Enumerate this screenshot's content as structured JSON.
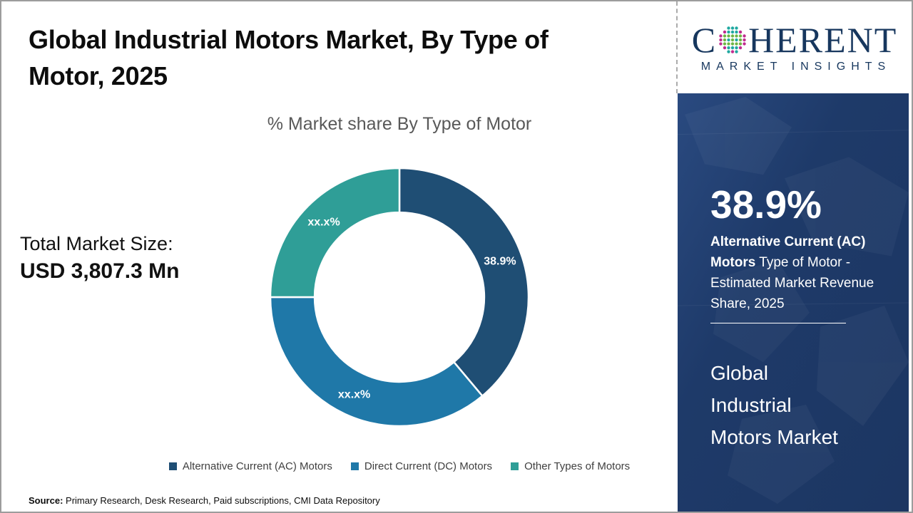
{
  "header": {
    "title_lines": [
      "Global Industrial Motors Market, By Type of",
      "Motor, 2025"
    ]
  },
  "logo": {
    "name_prefix": "C",
    "name_suffix": "HERENT",
    "tagline": "MARKET INSIGHTS",
    "navy": "#17375e",
    "dot_teal": "#1fa8a0",
    "dot_green": "#6fb544",
    "dot_magenta": "#c02b8e"
  },
  "chart_data": {
    "type": "pie",
    "donut": true,
    "title": "% Market share By Type of Motor",
    "start_angle_deg": 0,
    "inner_radius_ratio": 0.657,
    "legend_position": "bottom",
    "series": [
      {
        "name": "Alternative Current (AC) Motors",
        "value": 38.9,
        "label": "38.9%",
        "color": "#1F4E74"
      },
      {
        "name": "Direct Current (DC) Motors",
        "value": 36.1,
        "label": "xx.x%",
        "color": "#1F78A8"
      },
      {
        "name": "Other Types of Motors",
        "value": 25.0,
        "label": "xx.x%",
        "color": "#2F9E97"
      }
    ]
  },
  "market_size": {
    "label": "Total Market Size:",
    "value": "USD 3,807.3 Mn"
  },
  "sidebar": {
    "stat_value": "38.9%",
    "stat_segment": "Alternative Current (AC) Motors",
    "stat_description": "Type of Motor - Estimated Market Revenue Share, 2025",
    "market_name_lines": [
      "Global",
      "Industrial",
      "Motors Market"
    ],
    "background": "#1e3a69"
  },
  "footer": {
    "source_label": "Source:",
    "source_text": "Primary Research, Desk Research, Paid subscriptions, CMI Data Repository"
  }
}
